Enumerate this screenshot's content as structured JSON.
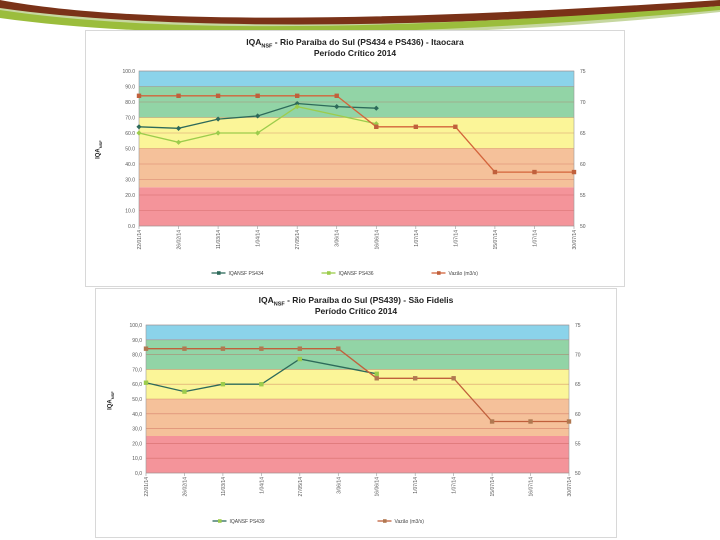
{
  "chart_data": [
    {
      "type": "line",
      "title": "IQA",
      "title_sub": "NSF",
      "title_rest": " - Rio Paraíba do Sul (PS434 e PS436) - Itaocara",
      "subtitle": "Período Crítico 2014",
      "ylabel": "IQA",
      "ylabel_sub": "NSF",
      "ylim": [
        0,
        100
      ],
      "y_ticks": [
        "0.0",
        "10.0",
        "20.0",
        "30.0",
        "40.0",
        "50.0",
        "60.0",
        "70.0",
        "80.0",
        "90.0",
        "100.0"
      ],
      "y2lim": [
        50,
        75
      ],
      "y2_ticks": [
        "50",
        "55",
        "60",
        "65",
        "70",
        "75"
      ],
      "categories": [
        "22/01/14",
        "26/02/14",
        "11/03/14",
        "1/04/14",
        "27/05/14",
        "3/06/14",
        "16/06/14",
        "1/07/14",
        "1/07/14",
        "15/07/14",
        "1/07/14",
        "30/07/14"
      ],
      "bands": [
        {
          "from": 0,
          "to": 25,
          "color": "#f4949a"
        },
        {
          "from": 25,
          "to": 50,
          "color": "#f5c19a"
        },
        {
          "from": 50,
          "to": 70,
          "color": "#fbf598"
        },
        {
          "from": 70,
          "to": 90,
          "color": "#92d4a6"
        },
        {
          "from": 90,
          "to": 100,
          "color": "#8bd3ea"
        }
      ],
      "series": [
        {
          "name": "IQANSF PS434",
          "color": "#2d6a5a",
          "axis": "left",
          "marker": "diamond",
          "values": [
            64,
            63,
            69,
            71,
            79,
            77,
            76,
            null,
            null,
            null,
            null,
            null
          ]
        },
        {
          "name": "IQANSF PS436",
          "color": "#9ccc4c",
          "axis": "left",
          "marker": "diamond",
          "values": [
            60,
            54,
            60,
            60,
            77,
            null,
            66,
            null,
            null,
            null,
            null,
            null
          ]
        },
        {
          "name": "Vazão (m3/s)",
          "color": "#d3643b",
          "axis": "right",
          "marker": "square",
          "marker_color": "#c0603c",
          "values": [
            71,
            71,
            71,
            71,
            71,
            71,
            66,
            66,
            66,
            58.7,
            58.7,
            58.7
          ]
        }
      ]
    },
    {
      "type": "line",
      "title": "IQA",
      "title_sub": "NSF",
      "title_rest": " - Rio Paraíba do Sul (PS439) - São Fidelis",
      "subtitle": "Período Crítico 2014",
      "ylabel": "IQA",
      "ylabel_sub": "NSF",
      "ylim": [
        0,
        100
      ],
      "y_ticks": [
        "0,0",
        "10,0",
        "20,0",
        "30,0",
        "40,0",
        "50,0",
        "60,0",
        "70,0",
        "80,0",
        "90,0",
        "100,0"
      ],
      "y2lim": [
        50,
        75
      ],
      "y2_ticks": [
        "50",
        "55",
        "60",
        "65",
        "70",
        "75"
      ],
      "categories": [
        "22/01/14",
        "26/02/14",
        "11/03/14",
        "1/04/14",
        "27/05/14",
        "3/06/14",
        "16/06/14",
        "1/07/14",
        "1/07/14",
        "15/07/14",
        "16/07/14",
        "30/07/14"
      ],
      "bands": [
        {
          "from": 0,
          "to": 25,
          "color": "#f4949a"
        },
        {
          "from": 25,
          "to": 50,
          "color": "#f5c19a"
        },
        {
          "from": 50,
          "to": 70,
          "color": "#fbf598"
        },
        {
          "from": 70,
          "to": 90,
          "color": "#92d4a6"
        },
        {
          "from": 90,
          "to": 100,
          "color": "#8bd3ea"
        }
      ],
      "series": [
        {
          "name": "IQANSF PS439",
          "color": "#2d6a5a",
          "axis": "left",
          "marker": "square",
          "marker_color": "#9ccc4c",
          "values": [
            61,
            55,
            60,
            60,
            77,
            null,
            67,
            null,
            null,
            null,
            null,
            null
          ]
        },
        {
          "name": "Vazão (m3/s)",
          "color": "#c0603c",
          "axis": "right",
          "marker": "square",
          "marker_color": "#b07850",
          "values": [
            71,
            71,
            71,
            71,
            71,
            71,
            66,
            66,
            66,
            58.7,
            58.7,
            58.7
          ]
        }
      ]
    }
  ],
  "colors": {
    "swoosh_dark": "#7a3218",
    "swoosh_green": "#9bbd3c",
    "swoosh_light": "#c6d7a0"
  }
}
